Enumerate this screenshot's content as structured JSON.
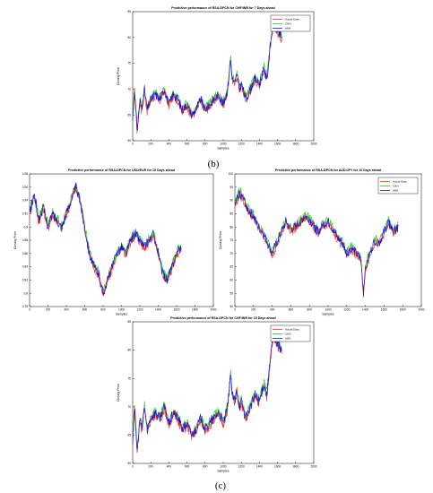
{
  "panel_labels": [
    "(b)",
    "(c)"
  ],
  "colors": {
    "actual": "#ff3030",
    "cnn": "#22cc22",
    "ann": "#1a1acc",
    "frame": "#000000"
  },
  "chart_data": [
    {
      "type": "line",
      "title": "Predictive performance of RSA-DPCN for CHF/INR for 7 Days ahead",
      "xlabel": "Samples",
      "ylabel": "Closing Price",
      "xlim": [
        0,
        2000
      ],
      "ylim": [
        60,
        85
      ],
      "xticks": [
        0,
        200,
        400,
        600,
        800,
        1000,
        1200,
        1400,
        1600,
        1800,
        2000
      ],
      "yticks": [
        60,
        65,
        70,
        75,
        80,
        85
      ],
      "legend_position": "top-right",
      "grid": false,
      "series": [
        {
          "name": "Actual Data",
          "color": "#ff3030"
        },
        {
          "name": "CNN",
          "color": "#22cc22"
        },
        {
          "name": "ANN",
          "color": "#1a1acc"
        }
      ],
      "x": [
        0,
        20,
        50,
        80,
        100,
        130,
        160,
        200,
        250,
        300,
        350,
        400,
        450,
        500,
        550,
        600,
        650,
        700,
        750,
        800,
        850,
        900,
        950,
        1000,
        1050,
        1080,
        1100,
        1130,
        1150,
        1180,
        1200,
        1250,
        1300,
        1350,
        1400,
        1450,
        1480,
        1500,
        1530,
        1560,
        1600,
        1650
      ],
      "y": [
        64,
        70,
        62,
        68,
        66,
        70,
        66,
        68,
        69,
        68,
        70,
        67,
        69,
        68,
        66,
        67,
        65,
        66,
        68,
        66,
        67,
        68,
        69,
        67,
        70,
        76,
        72,
        71,
        73,
        70,
        71,
        68,
        70,
        72,
        71,
        74,
        72,
        75,
        80,
        83,
        81,
        80
      ]
    },
    {
      "type": "line",
      "title": "Predictive performance of RSA-DPCN for USD/EUR for 15 Days ahead",
      "xlabel": "Samples",
      "ylabel": "Closing Price",
      "xlim": [
        0,
        2000
      ],
      "ylim": [
        0.78,
        0.98
      ],
      "xticks": [
        0,
        200,
        400,
        600,
        800,
        1000,
        1200,
        1400,
        1600,
        1800,
        2000
      ],
      "yticks": [
        0.78,
        0.8,
        0.82,
        0.84,
        0.86,
        0.88,
        0.9,
        0.92,
        0.94,
        0.96,
        0.98
      ],
      "grid": false,
      "series": [
        {
          "name": "Actual Data",
          "color": "#ff3030"
        },
        {
          "name": "CNN",
          "color": "#22cc22"
        },
        {
          "name": "ANN",
          "color": "#1a1acc"
        }
      ],
      "x": [
        0,
        50,
        100,
        150,
        200,
        250,
        300,
        350,
        400,
        450,
        500,
        550,
        600,
        650,
        700,
        750,
        800,
        850,
        900,
        950,
        1000,
        1050,
        1100,
        1150,
        1200,
        1250,
        1300,
        1350,
        1400,
        1450,
        1500,
        1550,
        1600,
        1650
      ],
      "y": [
        0.92,
        0.95,
        0.91,
        0.93,
        0.9,
        0.92,
        0.91,
        0.9,
        0.92,
        0.94,
        0.96,
        0.94,
        0.9,
        0.86,
        0.84,
        0.83,
        0.8,
        0.82,
        0.84,
        0.86,
        0.87,
        0.86,
        0.88,
        0.89,
        0.88,
        0.87,
        0.88,
        0.89,
        0.86,
        0.83,
        0.82,
        0.84,
        0.86,
        0.87
      ]
    },
    {
      "type": "line",
      "title": "Predictive performance of RSA-DPCN for AUD/JPY for 10 Days ahead",
      "xlabel": "Samples",
      "ylabel": "Closing Price",
      "xlim": [
        0,
        2000
      ],
      "ylim": [
        50,
        100
      ],
      "xticks": [
        0,
        200,
        400,
        600,
        800,
        1000,
        1200,
        1400,
        1600,
        1800,
        2000
      ],
      "yticks": [
        50,
        55,
        60,
        65,
        70,
        75,
        80,
        85,
        90,
        95,
        100
      ],
      "legend_position": "top-right",
      "grid": false,
      "series": [
        {
          "name": "Actual Data",
          "color": "#ff3030"
        },
        {
          "name": "CNN",
          "color": "#22cc22"
        },
        {
          "name": "ANN",
          "color": "#1a1acc"
        }
      ],
      "x": [
        0,
        50,
        100,
        150,
        200,
        250,
        300,
        350,
        400,
        450,
        500,
        550,
        600,
        650,
        700,
        750,
        800,
        850,
        900,
        950,
        1000,
        1050,
        1100,
        1150,
        1200,
        1250,
        1300,
        1350,
        1380,
        1400,
        1450,
        1500,
        1550,
        1600,
        1650,
        1700,
        1750
      ],
      "y": [
        88,
        93,
        90,
        86,
        84,
        80,
        78,
        74,
        70,
        74,
        78,
        82,
        79,
        80,
        82,
        84,
        83,
        80,
        78,
        81,
        82,
        79,
        76,
        74,
        70,
        72,
        70,
        68,
        55,
        65,
        70,
        75,
        74,
        78,
        82,
        78,
        80
      ]
    },
    {
      "type": "line",
      "title": "Predictive performance of RSA-DPCN for CHF/INR for 15 Days ahead",
      "xlabel": "Samples",
      "ylabel": "Closing Price",
      "xlim": [
        0,
        2000
      ],
      "ylim": [
        60,
        85
      ],
      "xticks": [
        0,
        200,
        400,
        600,
        800,
        1000,
        1200,
        1400,
        1600,
        1800,
        2000
      ],
      "yticks": [
        60,
        65,
        70,
        75,
        80,
        85
      ],
      "legend_position": "top-right",
      "grid": false,
      "series": [
        {
          "name": "Actual Data",
          "color": "#ff3030"
        },
        {
          "name": "CNN",
          "color": "#22cc22"
        },
        {
          "name": "ANN",
          "color": "#1a1acc"
        }
      ],
      "x": [
        0,
        20,
        50,
        80,
        100,
        130,
        160,
        200,
        250,
        300,
        350,
        400,
        450,
        500,
        550,
        600,
        650,
        700,
        750,
        800,
        850,
        900,
        950,
        1000,
        1050,
        1080,
        1100,
        1130,
        1150,
        1180,
        1200,
        1250,
        1300,
        1350,
        1400,
        1450,
        1480,
        1500,
        1530,
        1560,
        1600,
        1650
      ],
      "y": [
        64,
        70,
        62,
        68,
        66,
        70,
        66,
        68,
        69,
        68,
        70,
        67,
        69,
        68,
        66,
        67,
        65,
        66,
        68,
        66,
        67,
        68,
        69,
        67,
        70,
        76,
        72,
        71,
        73,
        70,
        71,
        68,
        70,
        72,
        71,
        74,
        72,
        75,
        80,
        83,
        81,
        80
      ]
    }
  ]
}
